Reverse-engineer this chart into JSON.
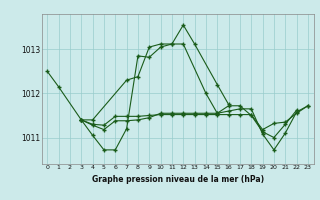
{
  "title": "Graphe pression niveau de la mer (hPa)",
  "bg_color": "#cceaea",
  "grid_color": "#99cccc",
  "line_color": "#1a5c1a",
  "x_labels": [
    "0",
    "1",
    "2",
    "3",
    "4",
    "5",
    "6",
    "7",
    "8",
    "9",
    "10",
    "11",
    "12",
    "13",
    "14",
    "15",
    "16",
    "17",
    "18",
    "19",
    "20",
    "21",
    "22",
    "23"
  ],
  "yticks": [
    1011,
    1012,
    1013
  ],
  "ylim": [
    1010.4,
    1013.8
  ],
  "xlim": [
    -0.5,
    23.5
  ],
  "series_data": {
    "line1_x": [
      0,
      1,
      3,
      4,
      7,
      8,
      9,
      10,
      11,
      12,
      13,
      15,
      16
    ],
    "line1_y": [
      1012.5,
      1012.15,
      1011.4,
      1011.4,
      1012.3,
      1012.38,
      1013.05,
      1013.12,
      1013.12,
      1013.55,
      1013.12,
      1012.2,
      1011.75
    ],
    "line2_x": [
      3,
      4,
      5,
      6,
      7,
      8,
      9,
      10,
      11,
      12,
      14,
      15,
      16,
      17,
      18,
      19,
      20,
      21,
      22
    ],
    "line2_y": [
      1011.4,
      1011.05,
      1010.72,
      1010.72,
      1011.2,
      1012.85,
      1012.82,
      1013.05,
      1013.12,
      1013.12,
      1012.0,
      1011.55,
      1011.72,
      1011.72,
      1011.5,
      1011.13,
      1011.0,
      1011.3,
      1011.62
    ],
    "line3_x": [
      3,
      4,
      5,
      6,
      7,
      8,
      9,
      10,
      11,
      12,
      13,
      14,
      15,
      16,
      17,
      18,
      19,
      20,
      21,
      22,
      23
    ],
    "line3_y": [
      1011.4,
      1011.3,
      1011.28,
      1011.48,
      1011.48,
      1011.48,
      1011.5,
      1011.52,
      1011.52,
      1011.52,
      1011.52,
      1011.52,
      1011.52,
      1011.52,
      1011.52,
      1011.52,
      1011.18,
      1011.32,
      1011.35,
      1011.55,
      1011.72
    ],
    "line4_x": [
      3,
      4,
      5,
      6,
      7,
      8,
      9,
      10,
      11,
      12,
      13,
      14,
      15,
      16,
      17,
      18,
      19,
      20,
      21,
      22,
      23
    ],
    "line4_y": [
      1011.4,
      1011.28,
      1011.18,
      1011.38,
      1011.38,
      1011.4,
      1011.45,
      1011.55,
      1011.55,
      1011.55,
      1011.55,
      1011.55,
      1011.55,
      1011.6,
      1011.65,
      1011.65,
      1011.08,
      1010.72,
      1011.1,
      1011.58,
      1011.72
    ]
  }
}
